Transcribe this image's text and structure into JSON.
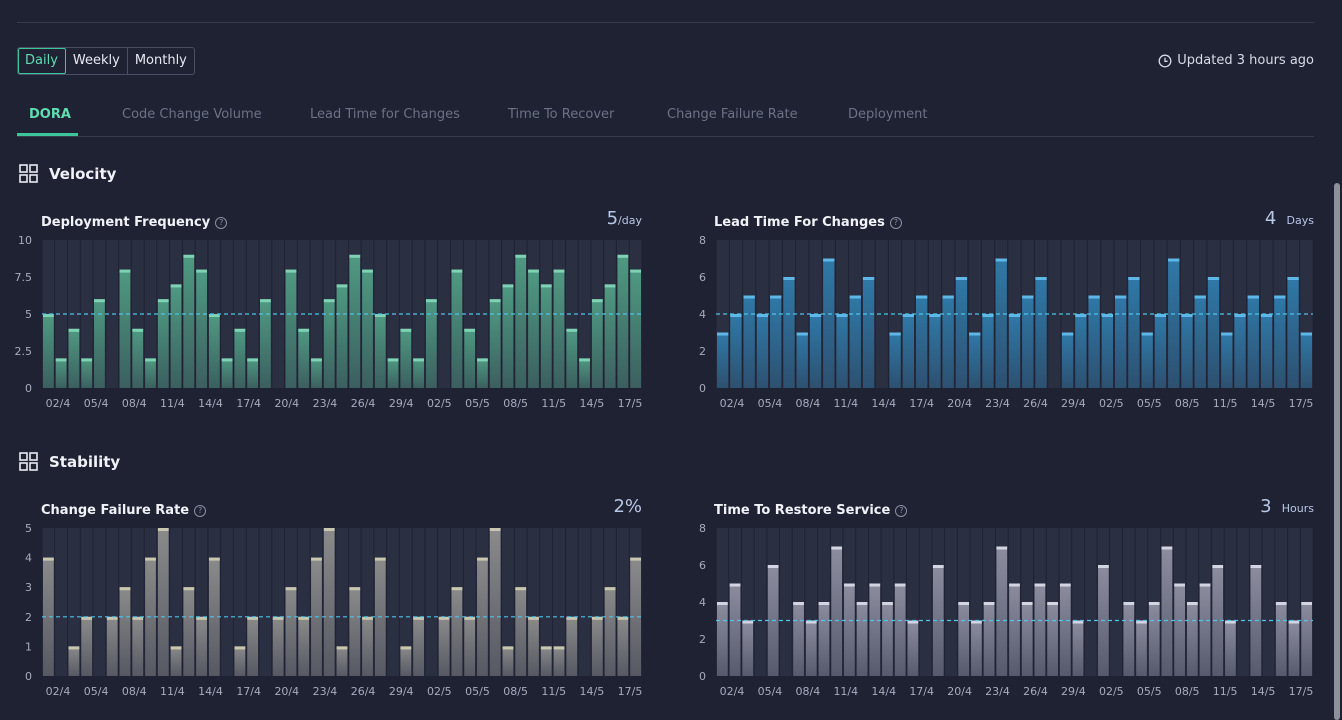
{
  "period_selector": {
    "options": [
      "Daily",
      "Weekly",
      "Monthly"
    ],
    "active": 0
  },
  "updated_text": "Updated 3 hours ago",
  "tabs": [
    "DORA",
    "Code Change Volume",
    "Lead Time for Changes",
    "Time To Recover",
    "Change Failure Rate",
    "Deployment"
  ],
  "sections": {
    "velocity": "Velocity",
    "stability": "Stability"
  },
  "colors": {
    "accent": "#3cc59a",
    "baseline": "#4fc3e8",
    "deploy": "#4f9a82",
    "lead": "#2f79a8",
    "cfr": "#8b8b8b",
    "restore": "#8c8ea0"
  },
  "panels": [
    {
      "title": "Deployment Frequency",
      "metric_value": "5",
      "metric_unit": "/day"
    },
    {
      "title": "Lead Time For Changes",
      "metric_value": "4",
      "metric_unit": "Days"
    },
    {
      "title": "Change Failure Rate",
      "metric_value": "2%",
      "metric_unit": ""
    },
    {
      "title": "Time To Restore Service",
      "metric_value": "3",
      "metric_unit": "Hours"
    }
  ],
  "chart_data": [
    {
      "type": "bar",
      "title": "Deployment Frequency",
      "x_tick_labels": [
        "02/4",
        "05/4",
        "08/4",
        "11/4",
        "14/4",
        "17/4",
        "20/4",
        "23/4",
        "26/4",
        "29/4",
        "02/5",
        "05/5",
        "08/5",
        "11/5",
        "14/5",
        "17/5"
      ],
      "y_tick_labels": [
        "0",
        "2.5",
        "5",
        "7.5",
        "10"
      ],
      "ylim": [
        0,
        10
      ],
      "baseline": 5,
      "values": [
        5,
        2,
        4,
        2,
        6,
        0,
        8,
        4,
        2,
        6,
        7,
        9,
        8,
        5,
        2,
        4,
        2,
        6,
        0,
        8,
        4,
        2,
        6,
        7,
        9,
        8,
        5,
        2,
        4,
        2,
        6,
        0,
        8,
        4,
        2,
        6,
        7,
        9,
        8,
        7,
        8,
        4,
        2,
        6,
        7,
        9,
        8
      ]
    },
    {
      "type": "bar",
      "title": "Lead Time For Changes",
      "x_tick_labels": [
        "02/4",
        "05/4",
        "08/4",
        "11/4",
        "14/4",
        "17/4",
        "20/4",
        "23/4",
        "26/4",
        "29/4",
        "02/5",
        "05/5",
        "08/5",
        "11/5",
        "14/5",
        "17/5"
      ],
      "y_tick_labels": [
        "0",
        "2",
        "4",
        "6",
        "8"
      ],
      "ylim": [
        0,
        8
      ],
      "baseline": 4,
      "values": [
        3,
        4,
        5,
        4,
        5,
        6,
        3,
        4,
        7,
        4,
        5,
        6,
        0,
        3,
        4,
        5,
        4,
        5,
        6,
        3,
        4,
        7,
        4,
        5,
        6,
        0,
        3,
        4,
        5,
        4,
        5,
        6,
        3,
        4,
        7,
        4,
        5,
        6,
        3,
        4,
        5,
        4,
        5,
        6,
        3
      ]
    },
    {
      "type": "bar",
      "title": "Change Failure Rate",
      "x_tick_labels": [
        "02/4",
        "05/4",
        "08/4",
        "11/4",
        "14/4",
        "17/4",
        "20/4",
        "23/4",
        "26/4",
        "29/4",
        "02/5",
        "05/5",
        "08/5",
        "11/5",
        "14/5",
        "17/5"
      ],
      "y_tick_labels": [
        "0",
        "1",
        "2",
        "3",
        "4",
        "5"
      ],
      "ylim": [
        0,
        5
      ],
      "baseline": 2,
      "values": [
        4,
        0,
        1,
        2,
        0,
        2,
        3,
        2,
        4,
        5,
        1,
        3,
        2,
        4,
        0,
        1,
        2,
        0,
        2,
        3,
        2,
        4,
        5,
        1,
        3,
        2,
        4,
        0,
        1,
        2,
        0,
        2,
        3,
        2,
        4,
        5,
        1,
        3,
        2,
        1,
        1,
        2,
        0,
        2,
        3,
        2,
        4
      ]
    },
    {
      "type": "bar",
      "title": "Time To Restore Service",
      "x_tick_labels": [
        "02/4",
        "05/4",
        "08/4",
        "11/4",
        "14/4",
        "17/4",
        "20/4",
        "23/4",
        "26/4",
        "29/4",
        "02/5",
        "05/5",
        "08/5",
        "11/5",
        "14/5",
        "17/5"
      ],
      "y_tick_labels": [
        "0",
        "2",
        "4",
        "6",
        "8"
      ],
      "ylim": [
        0,
        8
      ],
      "baseline": 3,
      "values": [
        4,
        5,
        3,
        0,
        6,
        0,
        4,
        3,
        4,
        7,
        5,
        4,
        5,
        4,
        5,
        3,
        0,
        6,
        0,
        4,
        3,
        4,
        7,
        5,
        4,
        5,
        4,
        5,
        3,
        0,
        6,
        0,
        4,
        3,
        4,
        7,
        5,
        4,
        5,
        6,
        3,
        0,
        6,
        0,
        4,
        3,
        4
      ]
    }
  ]
}
